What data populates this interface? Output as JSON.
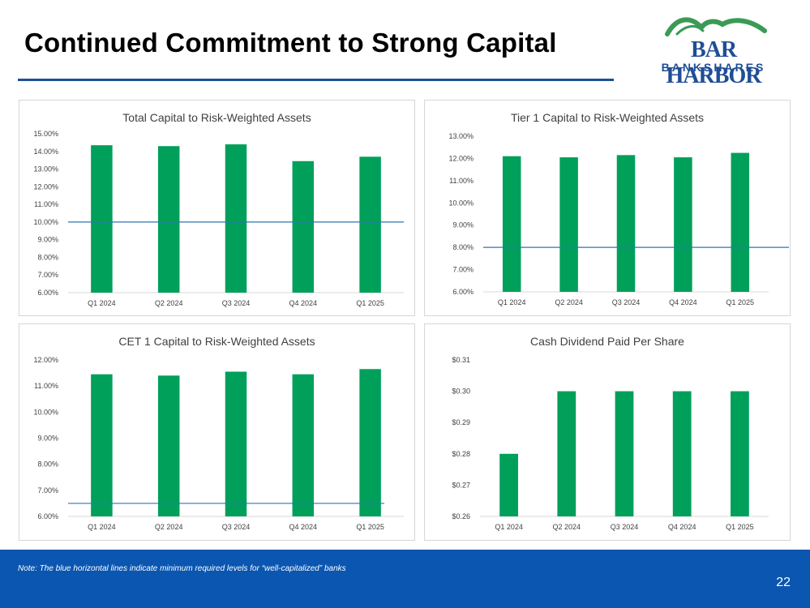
{
  "page": {
    "title": "Continued Commitment to Strong Capital",
    "logo_line1": "BAR HARBOR",
    "logo_line2": "BANKSHARES",
    "note": "Note:  The blue horizontal lines indicate minimum required levels for “well-capitalized” banks",
    "page_number": "22"
  },
  "colors": {
    "bar": "#00a05a",
    "threshold": "#2e75b6",
    "footer": "#0a56b0",
    "brand": "#1f4e96"
  },
  "chart_data": [
    {
      "id": "total_capital",
      "type": "bar",
      "title": "Total Capital to Risk-Weighted Assets",
      "categories": [
        "Q1 2024",
        "Q2 2024",
        "Q3 2024",
        "Q4 2024",
        "Q1 2025"
      ],
      "values": [
        14.35,
        14.3,
        14.4,
        13.45,
        13.7
      ],
      "ylim": [
        6,
        15
      ],
      "yticks": [
        6,
        7,
        8,
        9,
        10,
        11,
        12,
        13,
        14,
        15
      ],
      "ytick_labels": [
        "6.00%",
        "7.00%",
        "8.00%",
        "9.00%",
        "10.00%",
        "11.00%",
        "12.00%",
        "13.00%",
        "14.00%",
        "15.00%"
      ],
      "threshold": 10.0
    },
    {
      "id": "tier1_capital",
      "type": "bar",
      "title": "Tier 1 Capital to Risk-Weighted Assets",
      "categories": [
        "Q1 2024",
        "Q2 2024",
        "Q3 2024",
        "Q4 2024",
        "Q1 2025"
      ],
      "values": [
        12.1,
        12.05,
        12.15,
        12.05,
        12.25
      ],
      "ylim": [
        6,
        13
      ],
      "yticks": [
        6,
        7,
        8,
        9,
        10,
        11,
        12,
        13
      ],
      "ytick_labels": [
        "6.00%",
        "7.00%",
        "8.00%",
        "9.00%",
        "10.00%",
        "11.00%",
        "12.00%",
        "13.00%"
      ],
      "threshold": 8.0
    },
    {
      "id": "cet1_capital",
      "type": "bar",
      "title": "CET 1 Capital to Risk-Weighted Assets",
      "categories": [
        "Q1 2024",
        "Q2 2024",
        "Q3 2024",
        "Q4 2024",
        "Q1 2025"
      ],
      "values": [
        11.45,
        11.4,
        11.55,
        11.45,
        11.65
      ],
      "ylim": [
        6,
        12
      ],
      "yticks": [
        6,
        7,
        8,
        9,
        10,
        11,
        12
      ],
      "ytick_labels": [
        "6.00%",
        "7.00%",
        "8.00%",
        "9.00%",
        "10.00%",
        "11.00%",
        "12.00%"
      ],
      "threshold": 6.5
    },
    {
      "id": "cash_dividend",
      "type": "bar",
      "title": "Cash Dividend Paid Per Share",
      "categories": [
        "Q1 2024",
        "Q2 2024",
        "Q3 2024",
        "Q4 2024",
        "Q1 2025"
      ],
      "values": [
        0.28,
        0.3,
        0.3,
        0.3,
        0.3
      ],
      "ylim": [
        0.26,
        0.31
      ],
      "yticks": [
        0.26,
        0.27,
        0.28,
        0.29,
        0.3,
        0.31
      ],
      "ytick_labels": [
        "$0.26",
        "$0.27",
        "$0.28",
        "$0.29",
        "$0.30",
        "$0.31"
      ],
      "threshold": null
    }
  ]
}
